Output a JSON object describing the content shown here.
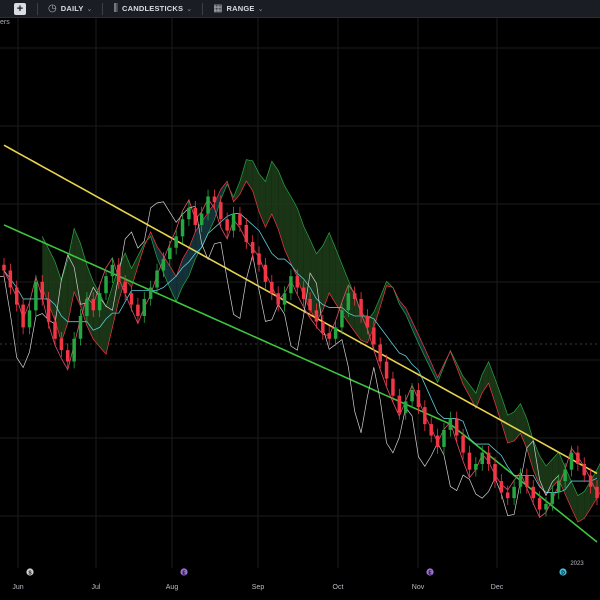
{
  "toolbar": {
    "interval_label": "DAILY",
    "style_label": "CANDLESTICKS",
    "range_label": "RANGE"
  },
  "subheader_text": "ers",
  "colors": {
    "background": "#000000",
    "grid": "#1b1b1b",
    "up": "#26a641",
    "down": "#f23645",
    "ma_long": "#e8d44d",
    "ma_mid": "#3ec43e",
    "cloud_bull": "#1f3d1a",
    "cloud_bear": "#163a40",
    "tenkan": "#e0506a",
    "kijun": "#5dc8d8",
    "chikou": "#d0d0d0"
  },
  "icons": {
    "add": "plus-square-icon",
    "interval": "clock-icon",
    "style": "candlestick-icon",
    "range": "calendar-icon"
  },
  "chart_data": {
    "type": "candlestick",
    "x_labels": [
      "Jun",
      "Jul",
      "Aug",
      "Sep",
      "Oct",
      "Nov",
      "Dec"
    ],
    "year_label": "2023",
    "event_markers": [
      {
        "month": "Jun",
        "symbol": "S",
        "color": "#d0d0d0"
      },
      {
        "month": "Aug",
        "symbol": "E",
        "color": "#a070e0"
      },
      {
        "month": "Nov",
        "symbol": "E",
        "color": "#a070e0"
      },
      {
        "month": "Dec",
        "symbol": "D",
        "color": "#3fc0e0"
      }
    ],
    "grid": true,
    "indicators": [
      "moving-average-long",
      "moving-average-mid",
      "ichimoku-cloud",
      "tenkan-sen",
      "kijun-sen",
      "chikou-span"
    ],
    "trend": "downtrend",
    "close_series": [
      62,
      59,
      56,
      52,
      55,
      60,
      57,
      53,
      50,
      48,
      46,
      50,
      54,
      57,
      55,
      58,
      61,
      63,
      60,
      58,
      56,
      54,
      57,
      59,
      62,
      64,
      66,
      68,
      71,
      73,
      70,
      72,
      75,
      74,
      71,
      69,
      72,
      70,
      67,
      65,
      63,
      60,
      58,
      56,
      58,
      61,
      59,
      57,
      55,
      53,
      51,
      50,
      52,
      55,
      58,
      57,
      54,
      52,
      49,
      46,
      43,
      40,
      37,
      39,
      41,
      38,
      35,
      33,
      31,
      34,
      36,
      33,
      30,
      27,
      28,
      30,
      28,
      25,
      23,
      22,
      24,
      26,
      24,
      22,
      20,
      21,
      23,
      25,
      27,
      30,
      28,
      26,
      24,
      22
    ]
  }
}
